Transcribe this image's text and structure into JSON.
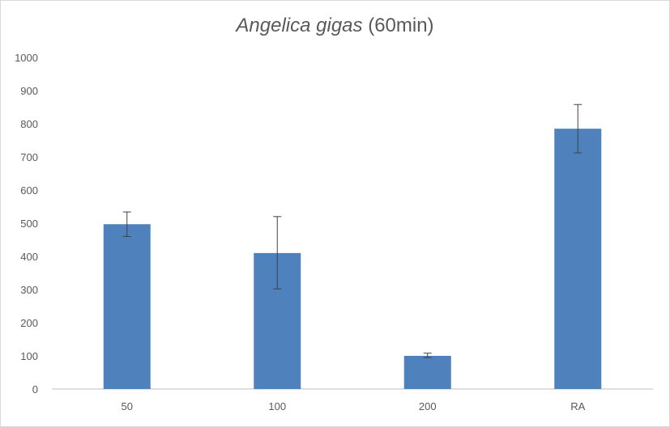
{
  "chart_data": {
    "type": "bar",
    "title_italic": "Angelica gigas",
    "title_rest": " (60min)",
    "xlabel": "",
    "ylabel": "",
    "categories": [
      "50",
      "100",
      "200",
      "RA"
    ],
    "values": [
      497,
      410,
      100,
      785
    ],
    "error_plus": [
      37,
      110,
      8,
      73
    ],
    "error_minus": [
      37,
      108,
      5,
      73
    ],
    "ylim": [
      0,
      1000
    ],
    "yticks": [
      "0",
      "100",
      "200",
      "300",
      "400",
      "500",
      "600",
      "700",
      "800",
      "900",
      "1000"
    ],
    "grid": false,
    "legend": "none",
    "bar_color": "#4f81bd",
    "errorbar_color": "#404040",
    "axis_color": "#bfbfbf"
  }
}
